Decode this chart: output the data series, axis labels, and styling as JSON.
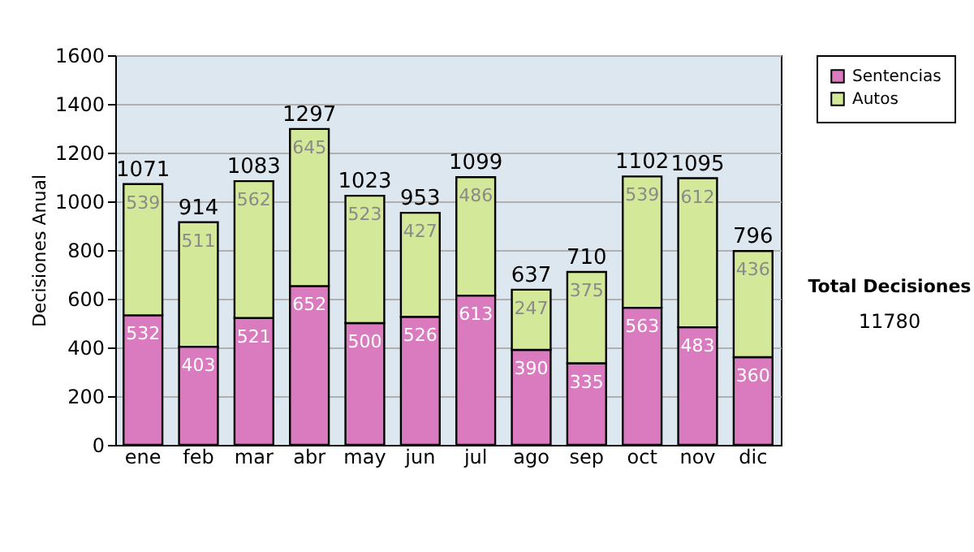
{
  "chart_data": {
    "type": "bar",
    "stacked": true,
    "ylabel": "Decisiones Anual",
    "categories": [
      "ene",
      "feb",
      "mar",
      "abr",
      "may",
      "jun",
      "jul",
      "ago",
      "sep",
      "oct",
      "nov",
      "dic"
    ],
    "series": [
      {
        "name": "Sentencias",
        "color": "#da7abf",
        "values": [
          532,
          403,
          521,
          652,
          500,
          526,
          613,
          390,
          335,
          563,
          483,
          360
        ]
      },
      {
        "name": "Autos",
        "color": "#d3e898",
        "values": [
          539,
          511,
          562,
          645,
          523,
          427,
          486,
          247,
          375,
          539,
          612,
          436
        ]
      }
    ],
    "ylim": [
      0,
      1600
    ],
    "yticks": [
      0,
      200,
      400,
      600,
      800,
      1000,
      1200,
      1400,
      1600
    ],
    "grid": "y",
    "legend": "right",
    "data_labels": true,
    "totals": [
      "1071",
      "914",
      "1083",
      "1297",
      "1023",
      "953",
      "1099",
      "637",
      "710",
      "1102",
      "1095",
      "796"
    ],
    "annotations": [
      "Total Decisiones",
      "11780"
    ]
  }
}
